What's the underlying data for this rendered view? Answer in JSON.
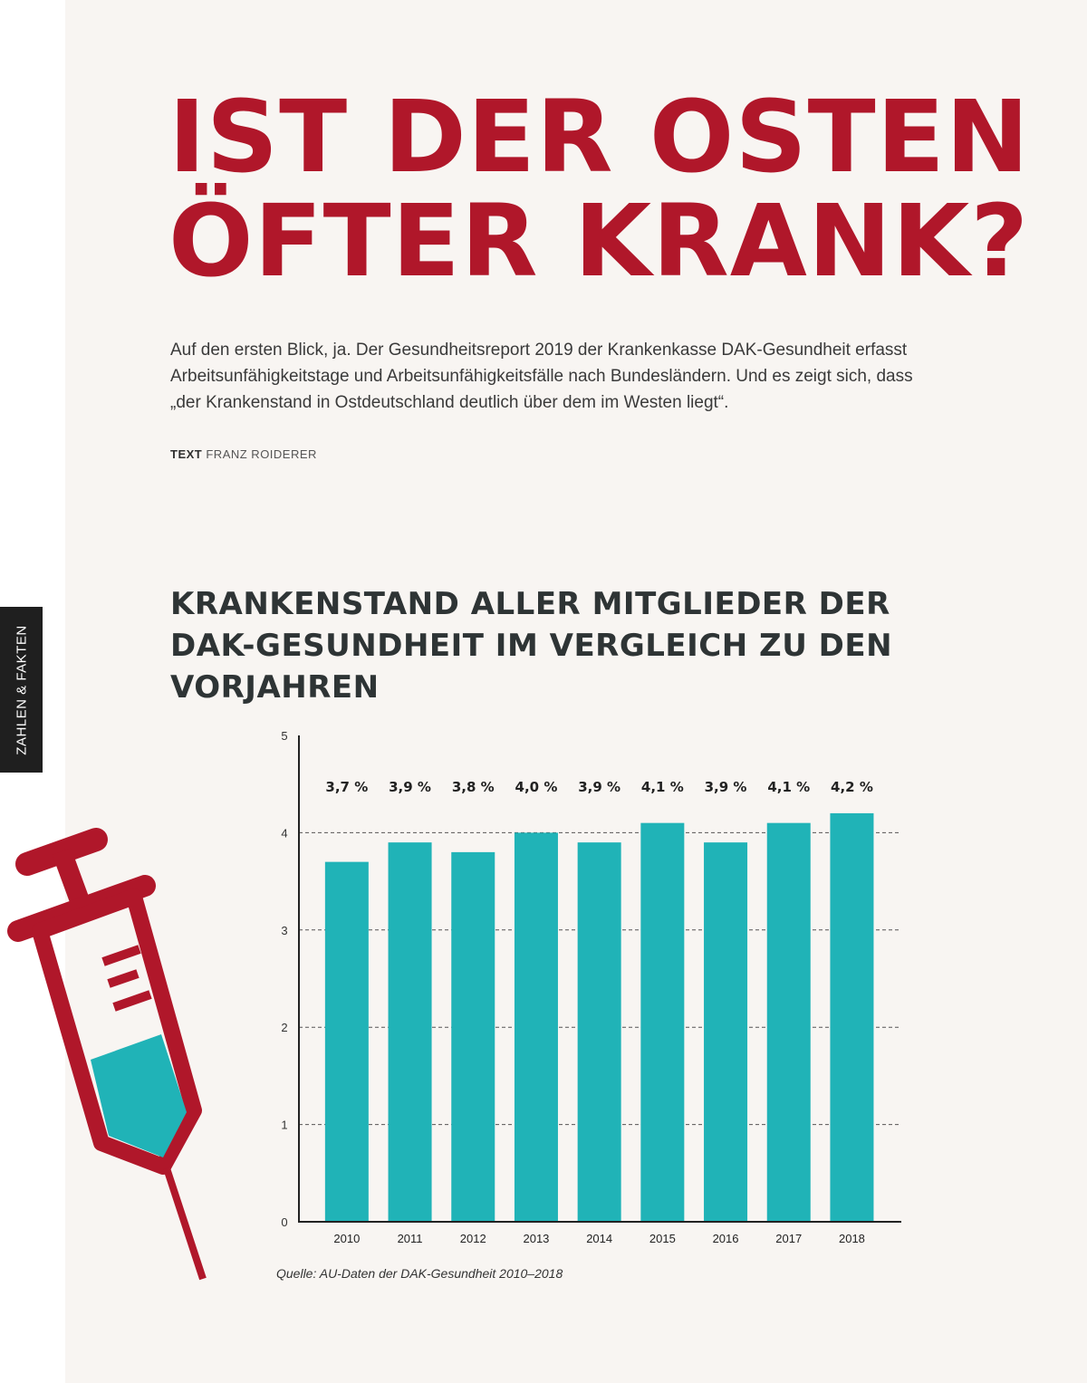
{
  "headline": {
    "line1": "Ist der Osten",
    "line2": "öfter krank?"
  },
  "lead": "Auf den ersten Blick, ja. Der Gesundheitsreport 2019 der Krankenkasse DAK-Gesundheit erfasst Arbeitsunfähigkeitstage und Arbeitsunfähigkeitsfälle nach Bundesländern. Und es zeigt sich, dass „der Krankenstand in Ostdeutschland deutlich über dem im Westen liegt“.",
  "byline": {
    "label": "TEXT",
    "author": "FRANZ ROIDERER"
  },
  "side_tab": "ZAHLEN & FAKTEN",
  "chart_title": "Krankenstand aller Mitglieder der DAK-Gesundheit im Vergleich zu den Vorjahren",
  "source": "Quelle: AU-Daten der DAK-Gesundheit 2010–2018",
  "colors": {
    "bar": "#20b3b7",
    "headline": "#b0172a",
    "syringe": "#b0172a",
    "fluid": "#20b3b7"
  },
  "chart_data": {
    "type": "bar",
    "categories": [
      "2010",
      "2011",
      "2012",
      "2013",
      "2014",
      "2015",
      "2016",
      "2017",
      "2018"
    ],
    "values": [
      3.7,
      3.9,
      3.8,
      4.0,
      3.9,
      4.1,
      3.9,
      4.1,
      4.2
    ],
    "data_labels": [
      "3,7 %",
      "3,9 %",
      "3,8 %",
      "4,0 %",
      "3,9 %",
      "4,1 %",
      "3,9 %",
      "4,1 %",
      "4,2 %"
    ],
    "yticks": [
      "0",
      "1",
      "2",
      "3",
      "4",
      "5"
    ],
    "ylim": [
      0,
      5
    ],
    "grid": true,
    "xlabel": "",
    "ylabel": ""
  }
}
